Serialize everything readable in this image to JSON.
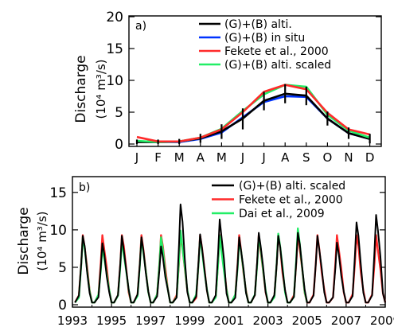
{
  "charts": [
    {
      "panel_label": "a)",
      "ylabel_line1": "Discharge",
      "ylabel_line2": "(10⁴ m³/s)",
      "xticks": [
        "J",
        "F",
        "M",
        "A",
        "M",
        "J",
        "J",
        "A",
        "S",
        "O",
        "N",
        "D"
      ],
      "yticks": [
        "0",
        "5",
        "10",
        "15",
        "20"
      ],
      "legend": [
        "(G)+(B) alti.",
        "(G)+(B) in situ",
        "Fekete et al., 2000",
        "(G)+(B) alti. scaled"
      ]
    },
    {
      "panel_label": "b)",
      "ylabel_line1": "Discharge",
      "ylabel_line2": "(10⁴ m³/s)",
      "xticks": [
        "1993",
        "1995",
        "1997",
        "1999",
        "2001",
        "2003",
        "2005",
        "2007",
        "2009"
      ],
      "yticks": [
        "0",
        "5",
        "10",
        "15"
      ],
      "legend": [
        "(G)+(B) alti. scaled",
        "Fekete et al., 2000",
        "Dai et al., 2009"
      ]
    }
  ],
  "chart_data": [
    {
      "type": "line",
      "categories": [
        "J",
        "F",
        "M",
        "A",
        "M",
        "J",
        "J",
        "A",
        "S",
        "O",
        "N",
        "D"
      ],
      "ylim": [
        0,
        20
      ],
      "series": [
        {
          "name": "(G)+(B) alti.",
          "color": "#000000",
          "values": [
            0.3,
            0.3,
            0.4,
            0.9,
            2.0,
            4.0,
            6.8,
            7.9,
            7.6,
            4.0,
            1.7,
            0.8
          ]
        },
        {
          "name": "(G)+(B) in situ",
          "color": "#0033ff",
          "values": [
            0.4,
            0.3,
            0.3,
            0.8,
            1.8,
            4.2,
            6.6,
            7.5,
            7.4,
            4.0,
            1.7,
            0.8
          ]
        },
        {
          "name": "Fekete et al., 2000",
          "color": "#ff2a2a",
          "values": [
            1.1,
            0.4,
            0.4,
            1.0,
            2.3,
            5.0,
            8.2,
            9.3,
            8.6,
            4.9,
            2.3,
            1.5
          ]
        },
        {
          "name": "(G)+(B) alti. scaled",
          "color": "#22ee66",
          "values": [
            0.5,
            0.3,
            0.4,
            1.0,
            2.4,
            5.2,
            7.8,
            9.3,
            9.0,
            4.6,
            2.1,
            1.0
          ]
        }
      ],
      "error_bars": {
        "series": "(G)+(B) alti.",
        "lower": [
          0.0,
          0.0,
          0.0,
          0.2,
          0.8,
          2.3,
          5.3,
          6.4,
          6.1,
          2.9,
          0.8,
          0.1
        ],
        "upper": [
          0.7,
          0.7,
          0.8,
          1.6,
          3.1,
          5.6,
          8.2,
          9.4,
          9.0,
          5.1,
          2.6,
          1.6
        ]
      }
    },
    {
      "type": "line",
      "xlim": [
        1993,
        2009
      ],
      "ylim": [
        0,
        17
      ],
      "series": [
        {
          "name": "(G)+(B) alti. scaled",
          "color": "#000000",
          "peaks": [
            [
              1993.55,
              9.2
            ],
            [
              1994.55,
              8.2
            ],
            [
              1995.55,
              9.2
            ],
            [
              1996.55,
              9.0
            ],
            [
              1997.55,
              7.8
            ],
            [
              1998.55,
              13.4
            ],
            [
              1999.55,
              9.4
            ],
            [
              2000.55,
              11.4
            ],
            [
              2001.55,
              9.0
            ],
            [
              2002.55,
              9.6
            ],
            [
              2003.55,
              9.2
            ],
            [
              2004.55,
              9.6
            ],
            [
              2005.55,
              9.2
            ],
            [
              2006.55,
              8.3
            ],
            [
              2007.55,
              11.0
            ],
            [
              2008.55,
              12.0
            ]
          ]
        },
        {
          "name": "Fekete et al., 2000",
          "color": "#ff2a2a",
          "peaks": [
            [
              1993.55,
              9.3
            ],
            [
              1994.55,
              9.3
            ],
            [
              1995.55,
              9.3
            ],
            [
              1996.55,
              9.3
            ],
            [
              1997.55,
              9.3
            ],
            [
              1998.55,
              9.3
            ],
            [
              1999.55,
              9.3
            ],
            [
              2000.55,
              9.3
            ],
            [
              2001.55,
              9.3
            ],
            [
              2002.55,
              9.3
            ],
            [
              2003.55,
              9.3
            ],
            [
              2004.55,
              9.3
            ],
            [
              2005.55,
              9.3
            ],
            [
              2006.55,
              9.3
            ],
            [
              2007.55,
              9.3
            ],
            [
              2008.55,
              9.3
            ]
          ]
        },
        {
          "name": "Dai et al., 2009",
          "color": "#22ee66",
          "peaks": [
            [
              1993.55,
              9.0
            ],
            [
              1994.55,
              7.6
            ],
            [
              1995.55,
              8.6
            ],
            [
              1996.55,
              8.8
            ],
            [
              1997.55,
              9.0
            ],
            [
              1998.55,
              9.9
            ],
            [
              1999.55,
              9.0
            ],
            [
              2000.55,
              9.2
            ],
            [
              2001.55,
              8.4
            ],
            [
              2002.55,
              9.0
            ],
            [
              2003.55,
              9.5
            ],
            [
              2004.55,
              10.2
            ]
          ]
        }
      ],
      "baseline": 0.3
    }
  ]
}
